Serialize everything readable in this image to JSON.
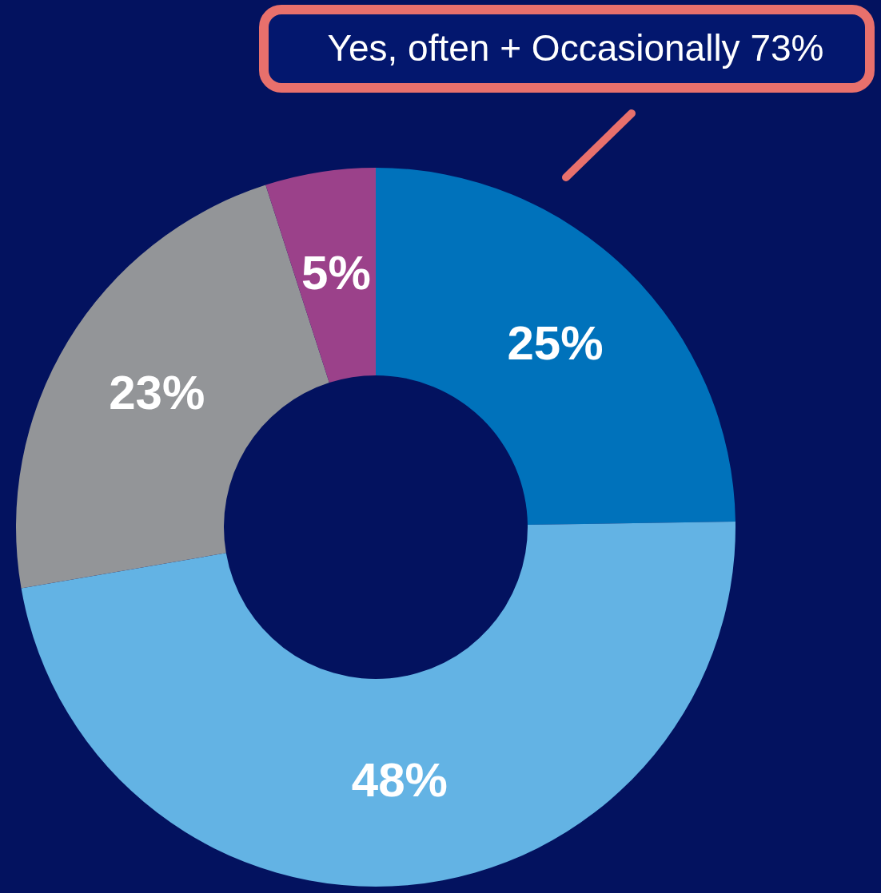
{
  "chart_data": {
    "type": "donut",
    "categories": [
      null,
      null,
      null,
      null
    ],
    "values": [
      25,
      48,
      23,
      5
    ],
    "colors": [
      "#0072bb",
      "#63b3e4",
      "#939598",
      "#9b418a"
    ],
    "value_labels": [
      "25%",
      "48%",
      "23%",
      "5%"
    ],
    "annotations": [
      "Yes, often + Occasionally 73%"
    ]
  }
}
